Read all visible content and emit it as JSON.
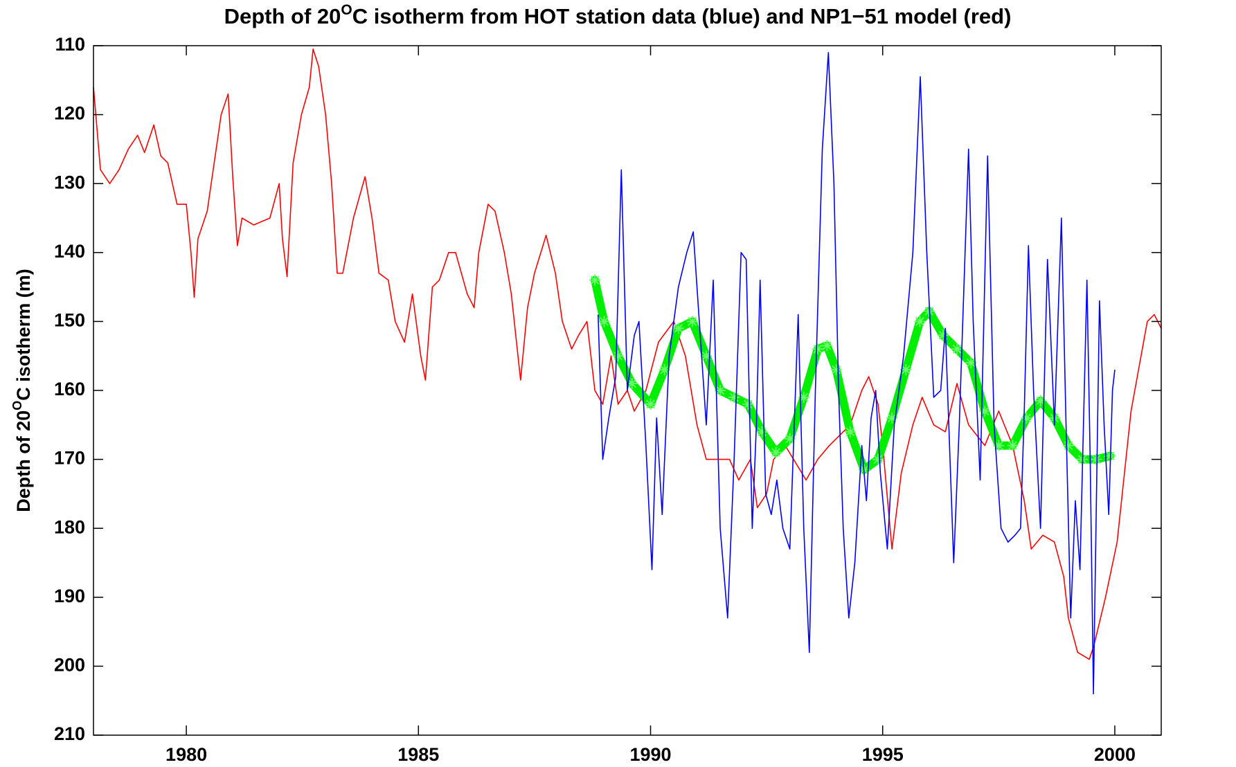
{
  "chart_data": {
    "type": "line",
    "title": [
      "Depth of 20",
      "O",
      "C isotherm from HOT station data (blue) and NP1−51 model (red)"
    ],
    "y_label": [
      "Depth of 20",
      "O",
      "C isotherm (m)"
    ],
    "xlim": [
      1978,
      2001
    ],
    "xticks": [
      1980,
      1985,
      1990,
      1995,
      2000
    ],
    "ylim": [
      110,
      210
    ],
    "y_reversed": true,
    "yticks": [
      110,
      120,
      130,
      140,
      150,
      160,
      170,
      180,
      190,
      200,
      210
    ],
    "grid": false,
    "series": [
      {
        "color": "#ff0000",
        "style": "line",
        "x": [
          1978.0,
          1978.15,
          1978.35,
          1978.55,
          1978.75,
          1978.95,
          1979.1,
          1979.3,
          1979.45,
          1979.6,
          1979.8,
          1980.0,
          1980.1,
          1980.17,
          1980.25,
          1980.45,
          1980.6,
          1980.75,
          1980.9,
          1981.0,
          1981.1,
          1981.2,
          1981.45,
          1981.8,
          1982.0,
          1982.07,
          1982.17,
          1982.3,
          1982.48,
          1982.65,
          1982.73,
          1982.85,
          1983.0,
          1983.13,
          1983.25,
          1983.37,
          1983.6,
          1983.85,
          1984.0,
          1984.15,
          1984.35,
          1984.5,
          1984.7,
          1984.87,
          1985.05,
          1985.15,
          1985.3,
          1985.45,
          1985.65,
          1985.8,
          1986.05,
          1986.2,
          1986.3,
          1986.5,
          1986.65,
          1986.85,
          1987.0,
          1987.2,
          1987.35,
          1987.5,
          1987.75,
          1987.95,
          1988.1,
          1988.3,
          1988.45,
          1988.63,
          1988.8,
          1988.97,
          1989.15,
          1989.3,
          1989.5,
          1989.65,
          1989.9,
          1990.17,
          1990.5,
          1990.75,
          1991.0,
          1991.2,
          1991.45,
          1991.7,
          1991.9,
          1992.15,
          1992.3,
          1992.5,
          1992.65,
          1992.9,
          1993.08,
          1993.35,
          1993.6,
          1993.85,
          1994.0,
          1994.3,
          1994.55,
          1994.7,
          1994.9,
          1995.0,
          1995.2,
          1995.4,
          1995.65,
          1995.85,
          1996.1,
          1996.35,
          1996.6,
          1996.85,
          1997.2,
          1997.5,
          1997.8,
          1998.05,
          1998.2,
          1998.45,
          1998.7,
          1998.9,
          1999.0,
          1999.2,
          1999.45,
          1999.55,
          1999.8,
          2000.05,
          2000.35,
          2000.7,
          2000.85,
          2001.0
        ],
        "values": [
          116,
          128,
          130,
          128,
          125,
          123,
          125.5,
          121.5,
          126,
          127,
          133,
          133,
          140,
          146.5,
          138,
          134,
          127,
          120,
          117,
          129,
          139,
          135,
          136,
          135,
          130,
          138,
          143.5,
          127,
          120,
          116,
          110.5,
          113,
          120,
          130,
          143,
          143,
          135,
          129,
          135,
          143,
          144,
          150,
          153,
          146,
          155,
          158.5,
          145,
          144,
          140,
          140,
          146,
          148,
          140,
          133,
          134,
          140,
          146,
          158.5,
          148,
          143,
          137.5,
          143,
          150,
          154,
          152,
          150,
          160,
          162,
          155,
          162,
          160,
          163,
          160,
          153,
          150,
          155,
          165,
          170,
          170,
          170,
          173,
          170,
          177,
          175,
          170,
          168,
          170,
          173,
          170,
          168,
          167,
          165,
          160,
          158,
          162,
          168,
          183,
          172,
          165,
          161,
          165,
          166,
          159,
          165,
          168,
          163,
          168,
          176,
          183,
          181,
          182,
          187,
          193,
          198,
          199,
          197,
          190,
          182,
          163,
          150,
          149,
          151
        ]
      },
      {
        "color": "#0000ff",
        "style": "line",
        "x": [
          1988.87,
          1988.97,
          1989.1,
          1989.25,
          1989.37,
          1989.5,
          1989.65,
          1989.75,
          1989.9,
          1990.03,
          1990.13,
          1990.25,
          1990.4,
          1990.6,
          1990.78,
          1990.92,
          1991.05,
          1991.2,
          1991.35,
          1991.5,
          1991.66,
          1991.8,
          1991.95,
          1992.06,
          1992.19,
          1992.28,
          1992.36,
          1992.48,
          1992.6,
          1992.72,
          1992.85,
          1993.0,
          1993.18,
          1993.3,
          1993.42,
          1993.55,
          1993.7,
          1993.83,
          1993.95,
          1994.05,
          1994.15,
          1994.27,
          1994.4,
          1994.55,
          1994.65,
          1994.75,
          1994.85,
          1994.95,
          1995.1,
          1995.25,
          1995.45,
          1995.65,
          1995.81,
          1995.95,
          1996.1,
          1996.25,
          1996.35,
          1996.53,
          1996.65,
          1996.85,
          1996.95,
          1997.1,
          1997.26,
          1997.4,
          1997.55,
          1997.7,
          1997.85,
          1997.97,
          1998.05,
          1998.14,
          1998.25,
          1998.4,
          1998.55,
          1998.7,
          1998.85,
          1998.95,
          1999.05,
          1999.15,
          1999.25,
          1999.4,
          1999.47,
          1999.54,
          1999.67,
          1999.77,
          1999.87,
          1999.95,
          2000.0
        ],
        "values": [
          149,
          170,
          164,
          158,
          128,
          160,
          152,
          150,
          168,
          186,
          164,
          178,
          155,
          145,
          140,
          137,
          150,
          165,
          144,
          180,
          193,
          170,
          140,
          141,
          180,
          165,
          144,
          175,
          178,
          173,
          180,
          183,
          149,
          180,
          198,
          160,
          125,
          111,
          130,
          160,
          180,
          193,
          185,
          168,
          176,
          164,
          160,
          172,
          183,
          165,
          155,
          140,
          114.5,
          140,
          161,
          160,
          151,
          185,
          165,
          125,
          150,
          173,
          126,
          165,
          180,
          182,
          181,
          180,
          163,
          139,
          160,
          180,
          141,
          165,
          135,
          165,
          193,
          176,
          186,
          144,
          170,
          204,
          147,
          165,
          178,
          160,
          157
        ]
      },
      {
        "color": "#00ee00",
        "style": "asterisk",
        "x": [
          1988.8,
          1989.0,
          1989.3,
          1989.6,
          1990.0,
          1990.3,
          1990.6,
          1990.9,
          1991.2,
          1991.5,
          1991.8,
          1992.1,
          1992.4,
          1992.7,
          1993.0,
          1993.3,
          1993.6,
          1993.8,
          1994.0,
          1994.3,
          1994.6,
          1994.9,
          1995.2,
          1995.5,
          1995.8,
          1996.0,
          1996.3,
          1996.6,
          1996.9,
          1997.2,
          1997.5,
          1997.8,
          1998.1,
          1998.4,
          1998.7,
          1999.0,
          1999.3,
          1999.6,
          1999.9
        ],
        "values": [
          144,
          150,
          155,
          159,
          162,
          157,
          151,
          150,
          155,
          160,
          161,
          162,
          166,
          169,
          167,
          161,
          154,
          153.5,
          157,
          166,
          171.5,
          170,
          164,
          157,
          150,
          148.5,
          152,
          154,
          156,
          163,
          168,
          168,
          164,
          161.5,
          164,
          168,
          170,
          170,
          169.5
        ]
      }
    ]
  }
}
